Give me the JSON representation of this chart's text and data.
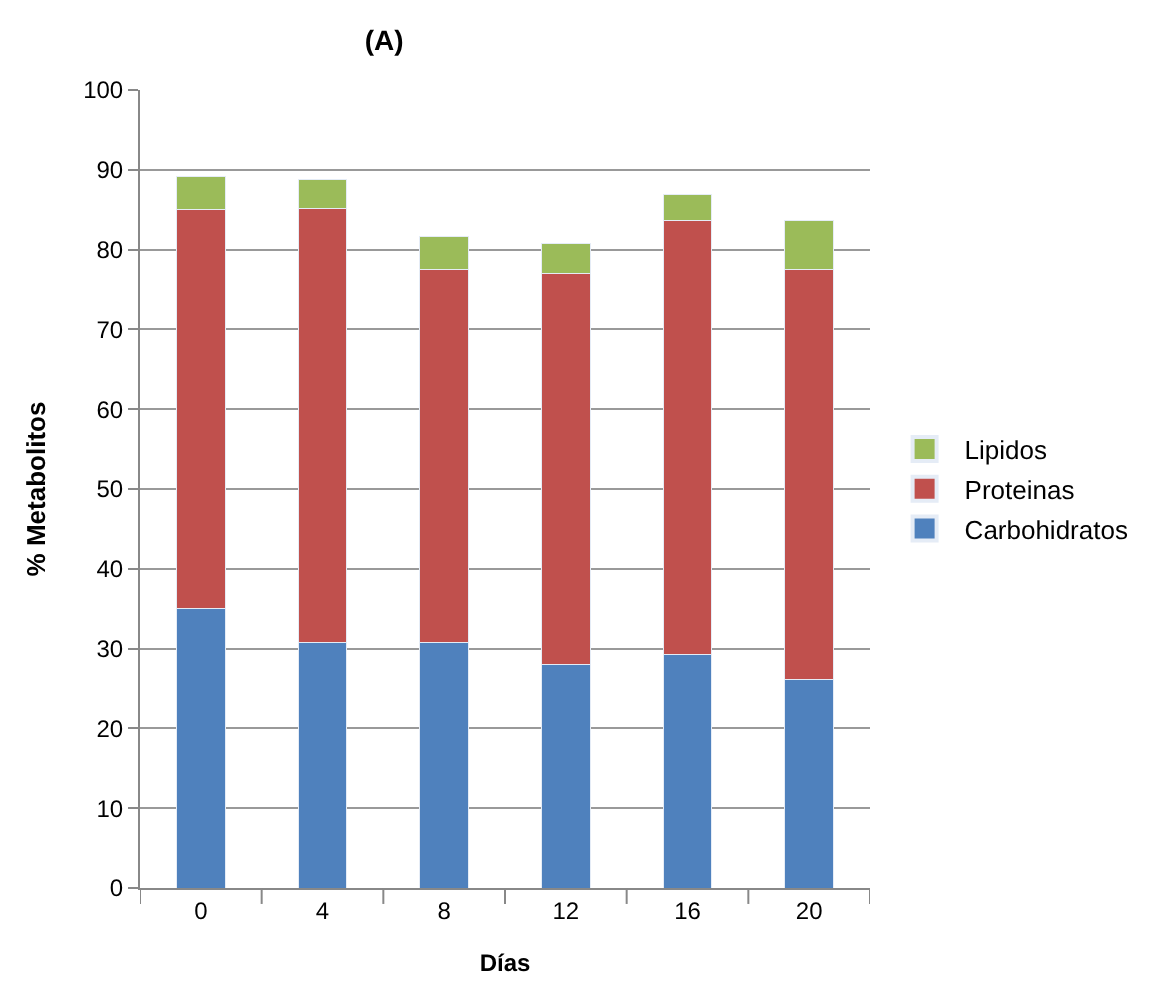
{
  "chart_data": {
    "type": "bar",
    "title": "(A)",
    "xlabel": "Días",
    "ylabel": "% Metabolitos",
    "categories": [
      "0",
      "4",
      "8",
      "12",
      "16",
      "20"
    ],
    "stacked": true,
    "ylim": [
      0,
      100
    ],
    "yticks": [
      0,
      10,
      20,
      30,
      40,
      50,
      60,
      70,
      80,
      90,
      100
    ],
    "grid": "y",
    "legend": "right",
    "series": [
      {
        "name": "Carbohidratos",
        "color": "#4f81bd",
        "values": [
          35,
          30.8,
          30.8,
          28,
          29.3,
          26.1
        ]
      },
      {
        "name": "Proteinas",
        "color": "#c0504d",
        "values": [
          50,
          54.4,
          46.7,
          49,
          54.4,
          51.4
        ]
      },
      {
        "name": "Lipidos",
        "color": "#9bbb59",
        "values": [
          4.2,
          3.6,
          4.2,
          3.8,
          3.2,
          6.1
        ]
      }
    ]
  }
}
